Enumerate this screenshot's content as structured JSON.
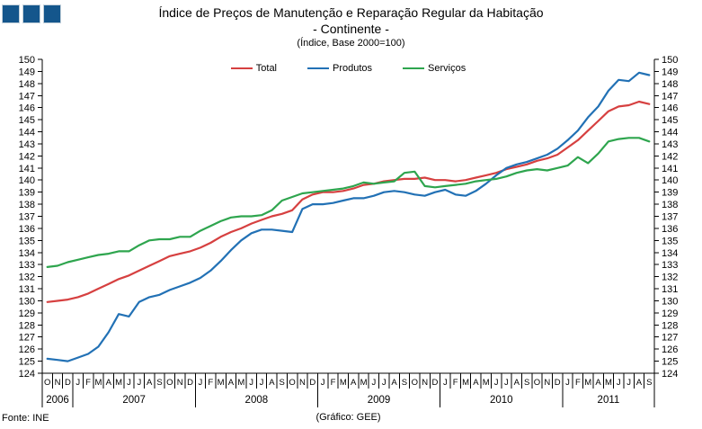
{
  "header": {
    "title": "Índice de Preços de Manutenção e Reparação Regular da Habitação",
    "subtitle": "- Continente -",
    "note": "(Índice, Base 2000=100)"
  },
  "footer": {
    "source": "Fonte: INE",
    "credit": "(Gráfico: GEE)"
  },
  "logo": {
    "color": "#14568C",
    "squares": 3
  },
  "chart_data": {
    "type": "line",
    "title": "Índice de Preços de Manutenção e Reparação Regular da Habitação - Continente (Índice, Base 2000=100)",
    "ylim": [
      124,
      150
    ],
    "ytick_step": 1,
    "grid": false,
    "legend_position": "top-center",
    "x_months": [
      "O",
      "N",
      "D",
      "J",
      "F",
      "M",
      "A",
      "M",
      "J",
      "J",
      "A",
      "S",
      "O",
      "N",
      "D",
      "J",
      "F",
      "M",
      "A",
      "M",
      "J",
      "J",
      "A",
      "S",
      "O",
      "N",
      "D",
      "J",
      "F",
      "M",
      "A",
      "M",
      "J",
      "J",
      "A",
      "S",
      "O",
      "N",
      "D",
      "J",
      "F",
      "M",
      "A",
      "M",
      "J",
      "J",
      "A",
      "S",
      "O",
      "N",
      "D",
      "J",
      "F",
      "M",
      "A",
      "M",
      "J",
      "J",
      "A",
      "S"
    ],
    "years": [
      {
        "label": "2006",
        "months": 3
      },
      {
        "label": "2007",
        "months": 12
      },
      {
        "label": "2008",
        "months": 12
      },
      {
        "label": "2009",
        "months": 12
      },
      {
        "label": "2010",
        "months": 12
      },
      {
        "label": "2011",
        "months": 9
      }
    ],
    "series": [
      {
        "name": "Total",
        "color": "#D64040",
        "values": [
          129.9,
          130.0,
          130.1,
          130.3,
          130.6,
          131.0,
          131.4,
          131.8,
          132.1,
          132.5,
          132.9,
          133.3,
          133.7,
          133.9,
          134.1,
          134.4,
          134.8,
          135.3,
          135.7,
          136.0,
          136.4,
          136.7,
          137.0,
          137.2,
          137.5,
          138.4,
          138.8,
          139.0,
          139.0,
          139.1,
          139.3,
          139.6,
          139.7,
          139.9,
          140.0,
          140.1,
          140.1,
          140.2,
          140.0,
          140.0,
          139.9,
          140.0,
          140.2,
          140.4,
          140.6,
          140.9,
          141.1,
          141.3,
          141.6,
          141.8,
          142.1,
          142.7,
          143.3,
          144.1,
          144.9,
          145.7,
          146.1,
          146.2,
          146.5,
          146.3
        ]
      },
      {
        "name": "Produtos",
        "color": "#2271B5",
        "values": [
          125.2,
          125.1,
          125.0,
          125.3,
          125.6,
          126.2,
          127.4,
          128.9,
          128.7,
          129.9,
          130.3,
          130.5,
          130.9,
          131.2,
          131.5,
          131.9,
          132.5,
          133.3,
          134.2,
          135.0,
          135.6,
          135.9,
          135.9,
          135.8,
          135.7,
          137.6,
          138.0,
          138.0,
          138.1,
          138.3,
          138.5,
          138.5,
          138.7,
          139.0,
          139.1,
          139.0,
          138.8,
          138.7,
          139.0,
          139.2,
          138.8,
          138.7,
          139.1,
          139.7,
          140.4,
          141.0,
          141.3,
          141.5,
          141.8,
          142.1,
          142.6,
          143.3,
          144.1,
          145.2,
          146.1,
          147.4,
          148.3,
          148.2,
          148.9,
          148.7
        ]
      },
      {
        "name": "Serviços",
        "color": "#2EA54E",
        "values": [
          132.8,
          132.9,
          133.2,
          133.4,
          133.6,
          133.8,
          133.9,
          134.1,
          134.1,
          134.6,
          135.0,
          135.1,
          135.1,
          135.3,
          135.3,
          135.8,
          136.2,
          136.6,
          136.9,
          137.0,
          137.0,
          137.1,
          137.5,
          138.3,
          138.6,
          138.9,
          139.0,
          139.1,
          139.2,
          139.3,
          139.5,
          139.8,
          139.7,
          139.8,
          139.9,
          140.6,
          140.7,
          139.5,
          139.4,
          139.5,
          139.6,
          139.7,
          139.9,
          140.0,
          140.1,
          140.3,
          140.6,
          140.8,
          140.9,
          140.8,
          141.0,
          141.2,
          141.9,
          141.4,
          142.2,
          143.2,
          143.4,
          143.5,
          143.5,
          143.2
        ]
      }
    ]
  }
}
